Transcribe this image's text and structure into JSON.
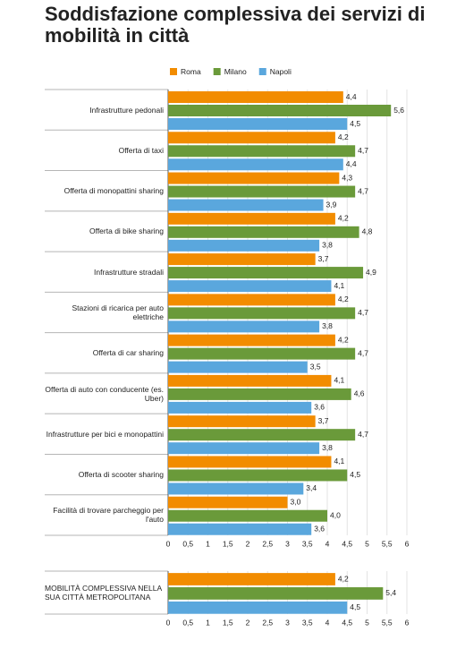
{
  "chart_data": [
    {
      "type": "bar",
      "orientation": "horizontal",
      "title": "Soddisfazione complessiva dei servizi di mobilità in città",
      "categories": [
        "Infrastrutture pedonali",
        "Offerta di taxi",
        "Offerta di monopattini sharing",
        "Offerta di bike sharing",
        "Infrastrutture stradali",
        "Stazioni di ricarica per auto elettriche",
        "Offerta di car sharing",
        "Offerta di auto con conducente (es. Uber)",
        "Infrastrutture per bici e monopattini",
        "Offerta di scooter sharing",
        "Facilità di trovare parcheggio per l'auto"
      ],
      "series": [
        {
          "name": "Roma",
          "color": "#f28c00",
          "values": [
            4.4,
            4.2,
            4.3,
            4.2,
            3.7,
            4.2,
            4.2,
            4.1,
            3.7,
            4.1,
            3.0
          ],
          "value_labels": [
            "4,4",
            "4,2",
            "4,3",
            "4,2",
            "3,7",
            "4,2",
            "4,2",
            "4,1",
            "3,7",
            "4,1",
            "3,0"
          ]
        },
        {
          "name": "Milano",
          "color": "#6a9a3a",
          "values": [
            5.6,
            4.7,
            4.7,
            4.8,
            4.9,
            4.7,
            4.7,
            4.6,
            4.7,
            4.5,
            4.0
          ],
          "value_labels": [
            "5,6",
            "4,7",
            "4,7",
            "4,8",
            "4,9",
            "4,7",
            "4,7",
            "4,6",
            "4,7",
            "4,5",
            "4,0"
          ]
        },
        {
          "name": "Napoli",
          "color": "#5aa7dd",
          "values": [
            4.5,
            4.4,
            3.9,
            3.8,
            4.1,
            3.8,
            3.5,
            3.6,
            3.8,
            3.4,
            3.6
          ],
          "value_labels": [
            "4,5",
            "4,4",
            "3,9",
            "3,8",
            "4,1",
            "3,8",
            "3,5",
            "3,6",
            "3,8",
            "3,4",
            "3,6"
          ]
        }
      ],
      "xlim": [
        0,
        6
      ],
      "xticks": [
        0,
        {
          "value": 0.5,
          "label": "0,5"
        },
        1,
        {
          "value": 1.5,
          "label": "1,5"
        },
        2,
        {
          "value": 2.5,
          "label": "2,5"
        },
        3,
        {
          "value": 3.5,
          "label": "3,5"
        },
        4,
        {
          "value": 4.5,
          "label": "4,5"
        },
        5,
        {
          "value": 5.5,
          "label": "5,5"
        },
        6
      ],
      "grid": true,
      "legend": "top"
    },
    {
      "type": "bar",
      "orientation": "horizontal",
      "categories": [
        "MOBILITÀ COMPLESSIVA NELLA SUA CITTÀ METROPOLITANA"
      ],
      "series": [
        {
          "color": "#f28c00",
          "values": [
            4.2
          ],
          "value_labels": [
            "4,2"
          ]
        },
        {
          "color": "#6a9a3a",
          "values": [
            5.4
          ],
          "value_labels": [
            "5,4"
          ]
        },
        {
          "color": "#5aa7dd",
          "values": [
            4.5
          ],
          "value_labels": [
            "4,5"
          ]
        }
      ],
      "xlim": [
        0,
        6
      ],
      "xticks": [
        0,
        {
          "value": 0.5,
          "label": "0,5"
        },
        1,
        {
          "value": 1.5,
          "label": "1,5"
        },
        2,
        {
          "value": 2.5,
          "label": "2,5"
        },
        3,
        {
          "value": 3.5,
          "label": "3,5"
        },
        4,
        {
          "value": 4.5,
          "label": "4,5"
        },
        5,
        {
          "value": 5.5,
          "label": "5,5"
        },
        6
      ],
      "grid": true
    }
  ]
}
